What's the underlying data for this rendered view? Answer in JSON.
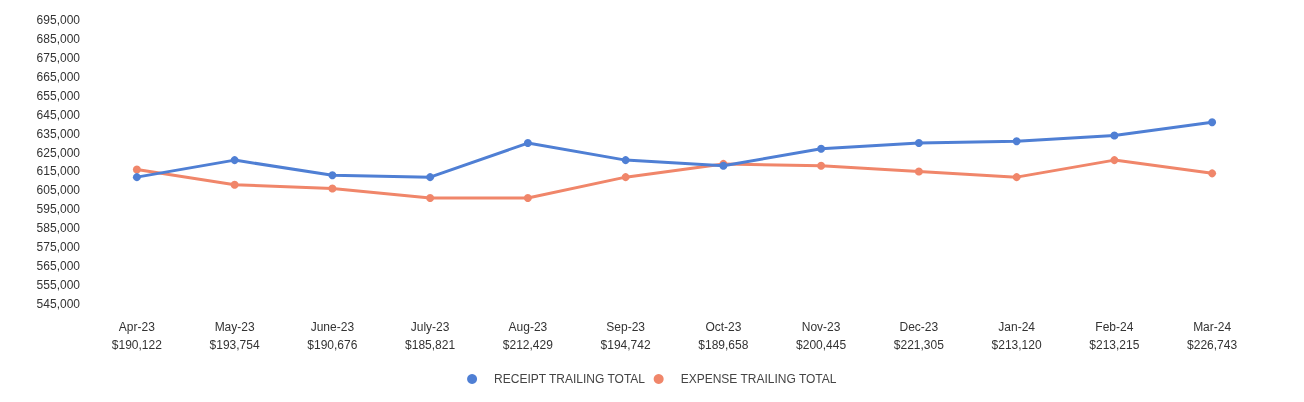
{
  "chart_data": {
    "type": "line",
    "categories": [
      "Apr-23\n$190,122",
      "May-23\n$193,754",
      "June-23\n$190,676",
      "July-23\n$185,821",
      "Aug-23\n$212,429",
      "Sep-23\n$194,742",
      "Oct-23\n$189,658",
      "Nov-23\n$200,445",
      "Dec-23\n$221,305",
      "Jan-24\n$213,120",
      "Feb-24\n$213,215",
      "Mar-24\n$226,743"
    ],
    "series": [
      {
        "name": "RECEIPT TRAILING TOTAL",
        "color": "#4f7fd4",
        "values": [
          612000,
          621000,
          613000,
          612000,
          630000,
          621000,
          618000,
          627000,
          630000,
          631000,
          634000,
          641000
        ]
      },
      {
        "name": "EXPENSE TRAILING TOTAL",
        "color": "#f0866a",
        "values": [
          616000,
          608000,
          606000,
          601000,
          601000,
          612000,
          619000,
          618000,
          615000,
          612000,
          621000,
          614000
        ]
      }
    ],
    "ylim": [
      545000,
      695000
    ],
    "yticks": [
      {
        "value": 545000,
        "label": "545,000"
      },
      {
        "value": 555000,
        "label": "555,000"
      },
      {
        "value": 565000,
        "label": "565,000"
      },
      {
        "value": 575000,
        "label": "575,000"
      },
      {
        "value": 585000,
        "label": "585,000"
      },
      {
        "value": 595000,
        "label": "595,000"
      },
      {
        "value": 605000,
        "label": "605,000"
      },
      {
        "value": 615000,
        "label": "615,000"
      },
      {
        "value": 625000,
        "label": "625,000"
      },
      {
        "value": 635000,
        "label": "635,000"
      },
      {
        "value": 645000,
        "label": "645,000"
      },
      {
        "value": 655000,
        "label": "655,000"
      },
      {
        "value": 665000,
        "label": "665,000"
      },
      {
        "value": 675000,
        "label": "675,000"
      },
      {
        "value": 685000,
        "label": "685,000"
      },
      {
        "value": 695000,
        "label": "695,000"
      }
    ],
    "grid": false,
    "legend": "bottom",
    "marker": "circle",
    "line_style": "solid"
  }
}
